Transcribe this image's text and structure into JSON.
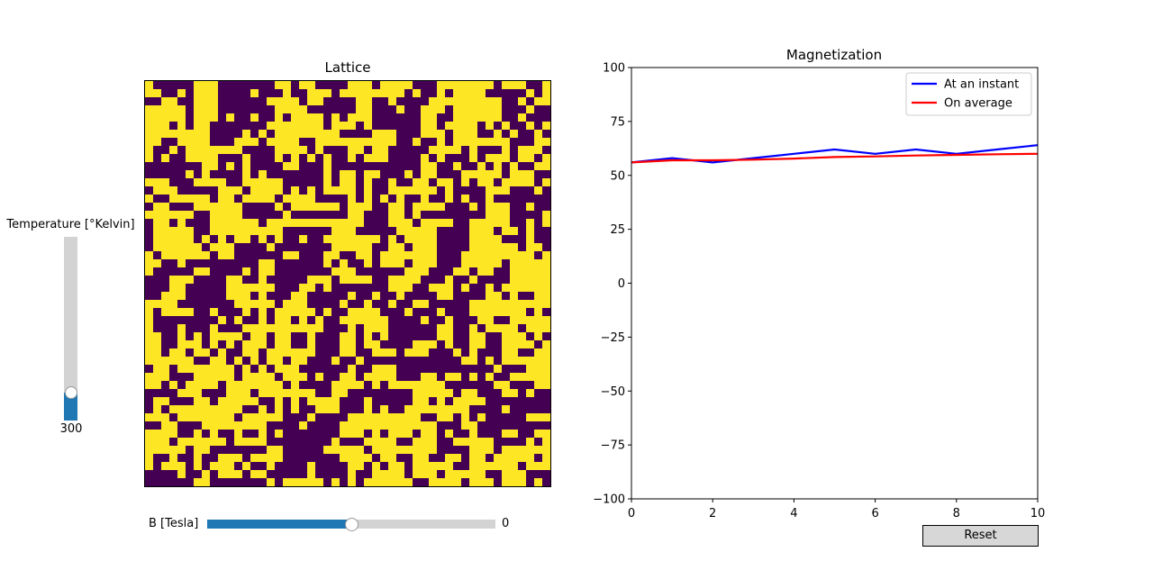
{
  "lattice": {
    "title": "Lattice",
    "size": 50,
    "colors": {
      "up": "#fde725",
      "down": "#440154"
    },
    "seed": 7
  },
  "temperature_slider": {
    "label": "Temperature [°Kelvin]",
    "value_text": "300",
    "level_fraction": 0.15
  },
  "b_slider": {
    "label": "B [Tesla]",
    "value_text": "0",
    "level_fraction": 0.5
  },
  "reset": {
    "label": "Reset"
  },
  "colors": {
    "slider_fill": "#1f77b4",
    "slider_track": "#d3d3d3"
  },
  "chart_data": {
    "type": "line",
    "title": "Magnetization",
    "xlabel": "",
    "ylabel": "",
    "xlim": [
      0,
      10
    ],
    "ylim": [
      -100,
      100
    ],
    "x_ticks": [
      0,
      2,
      4,
      6,
      8,
      10
    ],
    "y_ticks": [
      100,
      75,
      50,
      25,
      0,
      -25,
      -50,
      -75,
      -100
    ],
    "grid": false,
    "legend_position": "top-right",
    "series": [
      {
        "name": "At an instant",
        "color": "#0000ff",
        "x": [
          0,
          1,
          2,
          3,
          4,
          5,
          6,
          7,
          8,
          9,
          10
        ],
        "y": [
          56,
          58,
          56,
          58,
          60,
          62,
          60,
          62,
          60,
          62,
          64
        ]
      },
      {
        "name": "On average",
        "color": "#ff0000",
        "x": [
          0,
          1,
          2,
          3,
          4,
          5,
          6,
          7,
          8,
          9,
          10
        ],
        "y": [
          56,
          57,
          57,
          57.3,
          57.8,
          58.5,
          58.8,
          59.2,
          59.5,
          59.8,
          60
        ]
      }
    ]
  }
}
